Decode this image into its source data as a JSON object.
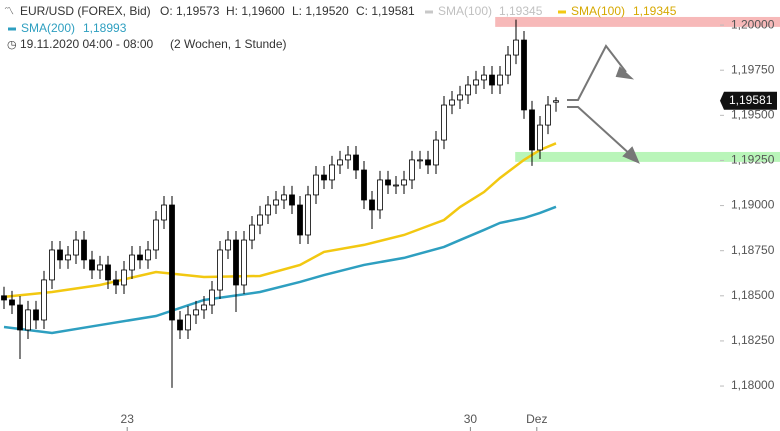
{
  "header": {
    "symbol": "EUR/USD (FOREX, Bid)",
    "open": "O: 1,19573",
    "high": "H: 1,19600",
    "low": "L: 1,19520",
    "close": "C: 1,19581",
    "sma_gray_name": "SMA(100)",
    "sma_gray_value": "1,19345",
    "period": "19.11.2020 04:00 - 08:00",
    "range": "(2 Wochen, 1 Stunde)"
  },
  "chart_data": {
    "type": "candlestick",
    "x": [
      0,
      1,
      2,
      3,
      4,
      5,
      6,
      7,
      8,
      9,
      10,
      11,
      12,
      13,
      14,
      15,
      16,
      17,
      18,
      19,
      20,
      21,
      22,
      23,
      24,
      25,
      26,
      27,
      28,
      29,
      30,
      31,
      32,
      33,
      34,
      35,
      36,
      37,
      38,
      39,
      40,
      41,
      42,
      43,
      44,
      45,
      46,
      47,
      48,
      49,
      50,
      51,
      52,
      53,
      54,
      55,
      56,
      57,
      58,
      59,
      60,
      61,
      62,
      63,
      64,
      65,
      66,
      67,
      68,
      69
    ],
    "open": [
      1.185,
      1.18477,
      1.18449,
      1.18311,
      1.18422,
      1.18366,
      1.18588,
      1.18754,
      1.18699,
      1.18726,
      1.18809,
      1.18699,
      1.18643,
      1.18671,
      1.18588,
      1.1856,
      1.18643,
      1.18726,
      1.18699,
      1.18754,
      1.1892,
      1.19003,
      1.18366,
      1.18311,
      1.18394,
      1.18422,
      1.18449,
      1.18532,
      1.18754,
      1.18809,
      1.1856,
      1.18809,
      1.18892,
      1.18948,
      1.19003,
      1.19031,
      1.19059,
      1.19003,
      1.18837,
      1.19059,
      1.19169,
      1.19142,
      1.19225,
      1.19253,
      1.1928,
      1.19197,
      1.19031,
      1.18976,
      1.19142,
      1.19114,
      1.19114,
      1.19142,
      1.19253,
      1.19253,
      1.19225,
      1.19363,
      1.19557,
      1.19585,
      1.19613,
      1.19668,
      1.19696,
      1.19723,
      1.19668,
      1.19723,
      1.19834,
      1.19917,
      1.1953,
      1.19308,
      1.19446,
      1.19573
    ],
    "high": [
      1.1855,
      1.18527,
      1.18499,
      1.18472,
      1.18472,
      1.18638,
      1.18804,
      1.18804,
      1.18776,
      1.18859,
      1.18859,
      1.18749,
      1.18721,
      1.18721,
      1.18638,
      1.18693,
      1.18776,
      1.18776,
      1.18804,
      1.1897,
      1.19053,
      1.19053,
      1.18416,
      1.18444,
      1.18472,
      1.18499,
      1.18582,
      1.18804,
      1.18859,
      1.18859,
      1.18859,
      1.18942,
      1.18998,
      1.19053,
      1.19081,
      1.19109,
      1.19109,
      1.19053,
      1.19109,
      1.19219,
      1.19219,
      1.19275,
      1.19303,
      1.1933,
      1.1933,
      1.19247,
      1.19081,
      1.19192,
      1.19192,
      1.19164,
      1.19192,
      1.19303,
      1.19303,
      1.19303,
      1.19413,
      1.19607,
      1.19635,
      1.19663,
      1.19718,
      1.19746,
      1.19773,
      1.19773,
      1.19773,
      1.19884,
      1.2003,
      1.19967,
      1.1958,
      1.19496,
      1.19607,
      1.196
    ],
    "low": [
      1.18427,
      1.18399,
      1.1815,
      1.18261,
      1.18316,
      1.18316,
      1.18538,
      1.18649,
      1.18649,
      1.18676,
      1.18649,
      1.18593,
      1.18593,
      1.18538,
      1.1851,
      1.1851,
      1.18593,
      1.18649,
      1.18649,
      1.18704,
      1.1887,
      1.1799,
      1.18261,
      1.18261,
      1.18344,
      1.18372,
      1.18399,
      1.18482,
      1.18704,
      1.1841,
      1.1851,
      1.18759,
      1.18842,
      1.18898,
      1.18953,
      1.18981,
      1.18953,
      1.18787,
      1.18787,
      1.19009,
      1.19092,
      1.19092,
      1.19175,
      1.19203,
      1.19147,
      1.18981,
      1.1887,
      1.18926,
      1.19064,
      1.19064,
      1.19064,
      1.19092,
      1.19203,
      1.19175,
      1.19175,
      1.19313,
      1.19507,
      1.19535,
      1.19563,
      1.19618,
      1.19646,
      1.19618,
      1.19618,
      1.19673,
      1.19784,
      1.1948,
      1.1922,
      1.19258,
      1.19396,
      1.1952
    ],
    "close": [
      1.18477,
      1.18449,
      1.18311,
      1.18422,
      1.18366,
      1.18588,
      1.18754,
      1.18699,
      1.18726,
      1.18809,
      1.18699,
      1.18643,
      1.18671,
      1.18588,
      1.1856,
      1.18643,
      1.18726,
      1.18699,
      1.18754,
      1.1892,
      1.19003,
      1.18366,
      1.18311,
      1.18394,
      1.18422,
      1.18449,
      1.18532,
      1.18754,
      1.18809,
      1.1856,
      1.18809,
      1.18892,
      1.18948,
      1.19003,
      1.19031,
      1.19059,
      1.19003,
      1.18837,
      1.19059,
      1.19169,
      1.19142,
      1.19225,
      1.19253,
      1.1928,
      1.19197,
      1.19031,
      1.18976,
      1.19142,
      1.19114,
      1.19114,
      1.19142,
      1.19253,
      1.19253,
      1.19225,
      1.19363,
      1.19557,
      1.19585,
      1.19613,
      1.19668,
      1.19696,
      1.19723,
      1.19668,
      1.19723,
      1.19834,
      1.19917,
      1.1953,
      1.19308,
      1.19446,
      1.19557,
      1.19581
    ],
    "series": [
      {
        "name": "SMA(100)",
        "color": "#f2c811",
        "last_label": "1,19345",
        "x": [
          0,
          6,
          12,
          19,
          25,
          32,
          37,
          40,
          45,
          50,
          55,
          57,
          60,
          62,
          65,
          67,
          69
        ],
        "values": [
          1.18494,
          1.18521,
          1.1856,
          1.18632,
          1.18604,
          1.1861,
          1.18671,
          1.18743,
          1.18782,
          1.18837,
          1.1892,
          1.18992,
          1.19075,
          1.19153,
          1.19253,
          1.19308,
          1.19345
        ]
      },
      {
        "name": "SMA(200)",
        "color": "#2e9fc0",
        "last_label": "1,18993",
        "x": [
          0,
          6,
          12,
          19,
          25,
          32,
          37,
          40,
          45,
          50,
          55,
          57,
          60,
          62,
          65,
          67,
          69
        ],
        "values": [
          1.18327,
          1.18294,
          1.18338,
          1.18388,
          1.18477,
          1.18521,
          1.18577,
          1.18615,
          1.18671,
          1.1871,
          1.18771,
          1.18809,
          1.18865,
          1.18904,
          1.18931,
          1.18959,
          1.18993
        ]
      }
    ],
    "zones": [
      {
        "color": "#f7b9b9",
        "start": 61.4,
        "low": 1.1999,
        "high": 1.20045
      },
      {
        "color": "#b9f5b9",
        "start": 63.9,
        "low": 1.19242,
        "high": 1.19297
      }
    ],
    "price_label": {
      "value": 1.19581,
      "label": "1,19581"
    },
    "xlim": [
      -0.5,
      89.5
    ],
    "ylim": [
      1.17895,
      1.20139
    ],
    "xticks": [
      {
        "value": 15.4,
        "label": "23"
      },
      {
        "value": 58.3,
        "label": "30"
      },
      {
        "value": 66.6,
        "label": "Dez"
      }
    ],
    "yticks": [
      {
        "value": 1.2,
        "label": "1,20000"
      },
      {
        "value": 1.1975,
        "label": "1,19750"
      },
      {
        "value": 1.195,
        "label": "1,19500"
      },
      {
        "value": 1.1925,
        "label": "1,19250"
      },
      {
        "value": 1.19,
        "label": "1,19000"
      },
      {
        "value": 1.1875,
        "label": "1,18750"
      },
      {
        "value": 1.185,
        "label": "1,18500"
      },
      {
        "value": 1.1825,
        "label": "1,18250"
      },
      {
        "value": 1.18,
        "label": "1,18000"
      }
    ]
  }
}
